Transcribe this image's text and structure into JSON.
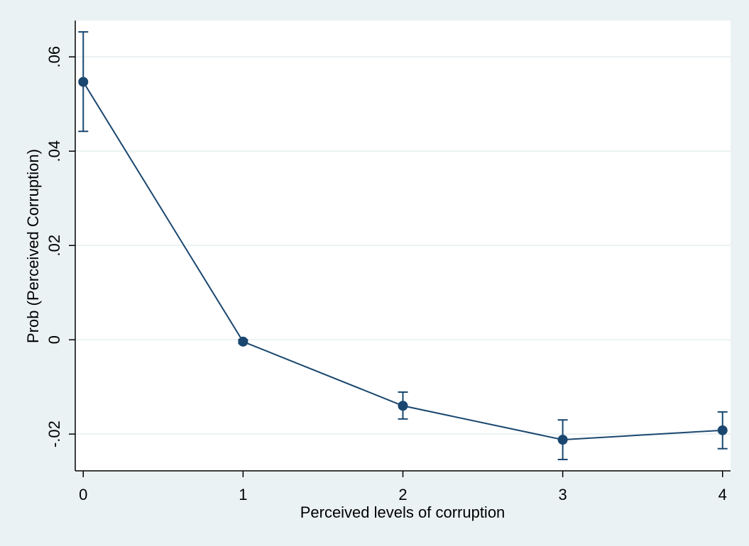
{
  "chart_data": {
    "type": "line",
    "xlabel": "Perceived levels of corruption",
    "ylabel": "Prob (Perceived Corruption)",
    "x": [
      0,
      1,
      2,
      3,
      4
    ],
    "xticks": [
      {
        "value": 0,
        "label": "0"
      },
      {
        "value": 1,
        "label": "1"
      },
      {
        "value": 2,
        "label": "2"
      },
      {
        "value": 3,
        "label": "3"
      },
      {
        "value": 4,
        "label": "4"
      }
    ],
    "yticks": [
      {
        "value": -0.02,
        "label": "-.02"
      },
      {
        "value": 0,
        "label": "0"
      },
      {
        "value": 0.02,
        "label": ".02"
      },
      {
        "value": 0.04,
        "label": ".04"
      },
      {
        "value": 0.06,
        "label": ".06"
      }
    ],
    "series": [
      {
        "values": [
          0.0547,
          -0.0004,
          -0.014,
          -0.0212,
          -0.0192
        ],
        "ci_low": [
          0.0442,
          -0.0008,
          -0.0168,
          -0.0254,
          -0.0231
        ],
        "ci_high": [
          0.0653,
          0.0,
          -0.0111,
          -0.017,
          -0.0153
        ]
      }
    ],
    "xlim": [
      -0.05,
      4.05
    ],
    "ylim": [
      -0.0278,
      0.0677
    ],
    "grid": true,
    "legend": "none",
    "colors": {
      "outer_background": "#eaf2f3",
      "plot_background": "#ffffff",
      "series": "#1a476f",
      "grid": "#eaf2f3"
    }
  }
}
